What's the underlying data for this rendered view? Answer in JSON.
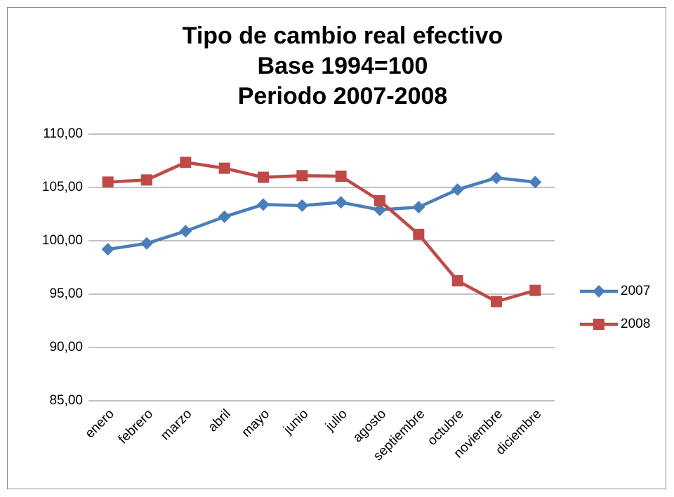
{
  "chart_data": {
    "type": "line",
    "title": [
      "Tipo de cambio real efectivo",
      "Base 1994=100",
      "Periodo 2007-2008"
    ],
    "categories": [
      "enero",
      "febrero",
      "marzo",
      "abril",
      "mayo",
      "junio",
      "julio",
      "agosto",
      "septiembre",
      "octubre",
      "noviembre",
      "diciembre"
    ],
    "series": [
      {
        "name": "2007",
        "color": "#4a7ebb",
        "marker": "diamond",
        "values": [
          99.2,
          99.75,
          100.9,
          102.25,
          103.4,
          103.3,
          103.6,
          102.9,
          103.15,
          104.8,
          105.9,
          105.5
        ]
      },
      {
        "name": "2008",
        "color": "#be4b48",
        "marker": "square",
        "values": [
          105.5,
          105.7,
          107.35,
          106.8,
          105.95,
          106.1,
          106.05,
          103.75,
          100.6,
          96.25,
          94.3,
          95.35
        ]
      }
    ],
    "ylim": [
      85,
      110
    ],
    "yticks": [
      {
        "value": 85,
        "label": "85,00"
      },
      {
        "value": 90,
        "label": "90,00"
      },
      {
        "value": 95,
        "label": "95,00"
      },
      {
        "value": 100,
        "label": "100,00"
      },
      {
        "value": 105,
        "label": "105,00"
      },
      {
        "value": 110,
        "label": "110,00"
      }
    ],
    "grid": true,
    "legend": "right"
  }
}
